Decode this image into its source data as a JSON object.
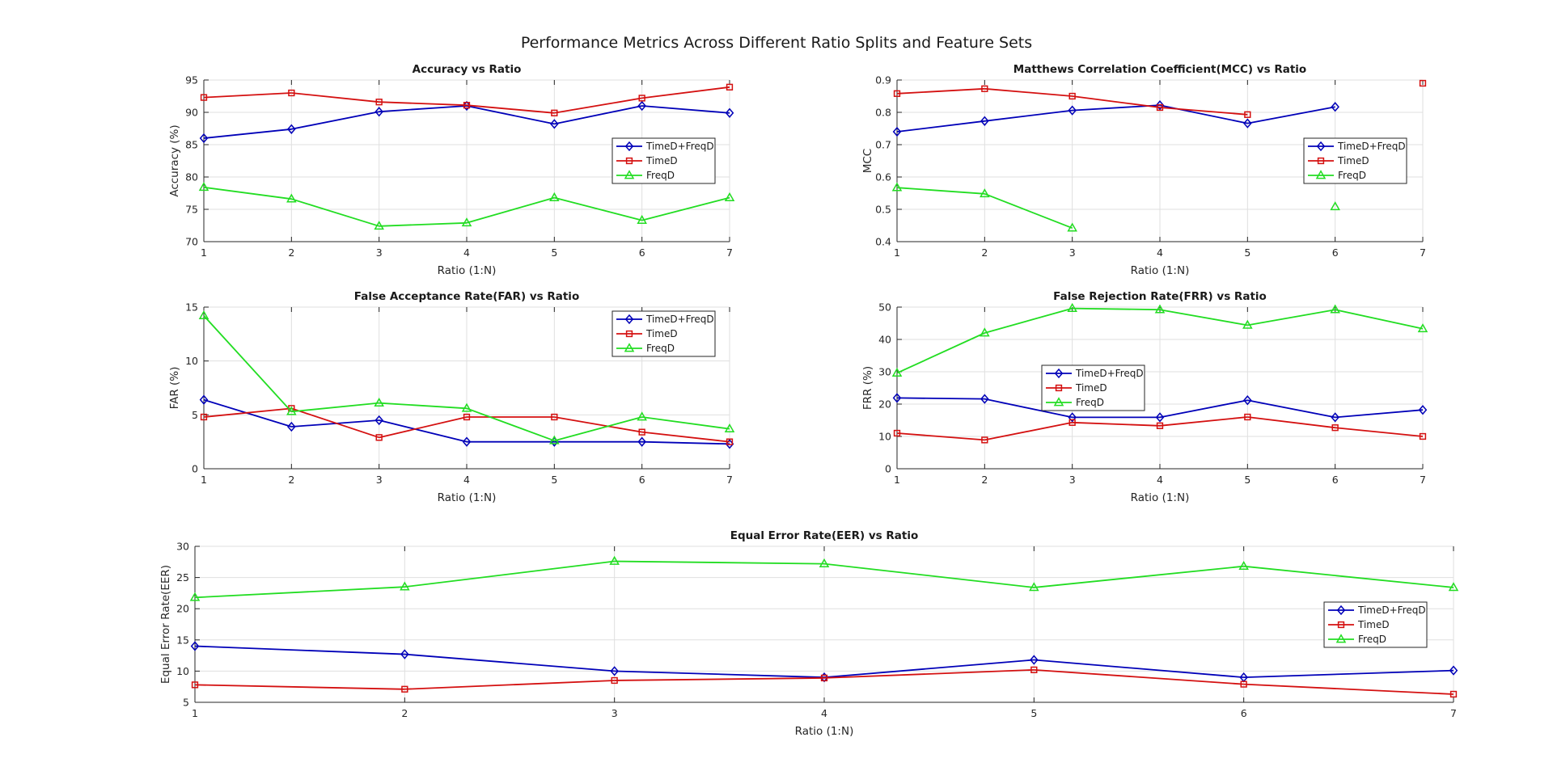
{
  "figure_title": "Performance Metrics Across Different Ratio Splits and Feature Sets",
  "series_styles": {
    "TimeD+FreqD": {
      "color": "#0000b8",
      "marker": "diamond"
    },
    "TimeD": {
      "color": "#d41010",
      "marker": "square"
    },
    "FreqD": {
      "color": "#22dd22",
      "marker": "triangle"
    }
  },
  "chart_data": [
    {
      "type": "line",
      "title": "Accuracy vs Ratio",
      "xlabel": "Ratio (1:N)",
      "ylabel": "Accuracy (%)",
      "x": [
        1,
        2,
        3,
        4,
        5,
        6,
        7
      ],
      "xlim": [
        1,
        7
      ],
      "ylim": [
        70,
        95
      ],
      "yticks": [
        70,
        75,
        80,
        85,
        90,
        95
      ],
      "grid": true,
      "legend": "right",
      "series": [
        {
          "name": "TimeD+FreqD",
          "values": [
            86.0,
            87.4,
            90.1,
            91.0,
            88.2,
            91.0,
            89.9
          ]
        },
        {
          "name": "TimeD",
          "values": [
            92.3,
            93.0,
            91.6,
            91.1,
            89.9,
            92.2,
            93.9
          ]
        },
        {
          "name": "FreqD",
          "values": [
            78.4,
            76.6,
            72.4,
            72.9,
            76.8,
            73.3,
            76.8
          ]
        }
      ]
    },
    {
      "type": "line",
      "title": "Matthews Correlation Coefficient(MCC) vs Ratio",
      "xlabel": "Ratio (1:N)",
      "ylabel": "MCC",
      "x": [
        1,
        2,
        3,
        4,
        5,
        6,
        7
      ],
      "xlim": [
        1,
        7
      ],
      "ylim": [
        0.4,
        0.9
      ],
      "yticks": [
        0.4,
        0.5,
        0.6,
        0.7,
        0.8,
        0.9
      ],
      "grid": true,
      "legend": "right",
      "series": [
        {
          "name": "TimeD+FreqD",
          "values": [
            0.74,
            0.773,
            0.806,
            0.822,
            0.766,
            0.817,
            null
          ]
        },
        {
          "name": "TimeD",
          "values": [
            0.858,
            0.873,
            0.85,
            0.815,
            0.793,
            null,
            0.89
          ]
        },
        {
          "name": "FreqD",
          "values": [
            0.567,
            0.548,
            0.442,
            null,
            null,
            0.508,
            null
          ]
        }
      ]
    },
    {
      "type": "line",
      "title": "False Acceptance Rate(FAR) vs Ratio",
      "xlabel": "Ratio (1:N)",
      "ylabel": "FAR (%)",
      "x": [
        1,
        2,
        3,
        4,
        5,
        6,
        7
      ],
      "xlim": [
        1,
        7
      ],
      "ylim": [
        0,
        15
      ],
      "yticks": [
        0,
        5,
        10,
        15
      ],
      "grid": true,
      "legend": "top-right",
      "series": [
        {
          "name": "TimeD+FreqD",
          "values": [
            6.4,
            3.9,
            4.5,
            2.5,
            2.5,
            2.5,
            2.3
          ]
        },
        {
          "name": "TimeD",
          "values": [
            4.8,
            5.6,
            2.9,
            4.8,
            4.8,
            3.4,
            2.5
          ]
        },
        {
          "name": "FreqD",
          "values": [
            14.2,
            5.3,
            6.1,
            5.6,
            2.6,
            4.8,
            3.7
          ]
        }
      ]
    },
    {
      "type": "line",
      "title": "False Rejection Rate(FRR) vs Ratio",
      "xlabel": "Ratio (1:N)",
      "ylabel": "FRR (%)",
      "x": [
        1,
        2,
        3,
        4,
        5,
        6,
        7
      ],
      "xlim": [
        1,
        7
      ],
      "ylim": [
        0,
        50
      ],
      "yticks": [
        0,
        10,
        20,
        30,
        40,
        50
      ],
      "grid": true,
      "legend": "left",
      "series": [
        {
          "name": "TimeD+FreqD",
          "values": [
            21.9,
            21.6,
            15.9,
            15.9,
            21.2,
            15.9,
            18.2
          ]
        },
        {
          "name": "TimeD",
          "values": [
            11.0,
            8.9,
            14.3,
            13.3,
            16.0,
            12.7,
            10.0
          ]
        },
        {
          "name": "FreqD",
          "values": [
            29.6,
            42.0,
            49.6,
            49.2,
            44.4,
            49.2,
            43.3
          ]
        }
      ]
    },
    {
      "type": "line",
      "title": "Equal Error Rate(EER) vs Ratio",
      "xlabel": "Ratio (1:N)",
      "ylabel": "Equal Error Rate(EER)",
      "x": [
        1,
        2,
        3,
        4,
        5,
        6,
        7
      ],
      "xlim": [
        1,
        7
      ],
      "ylim": [
        5,
        30
      ],
      "yticks": [
        5,
        10,
        15,
        20,
        25,
        30
      ],
      "grid": true,
      "legend": "right",
      "series": [
        {
          "name": "TimeD+FreqD",
          "values": [
            14.0,
            12.7,
            10.0,
            9.0,
            11.8,
            9.0,
            10.1
          ]
        },
        {
          "name": "TimeD",
          "values": [
            7.8,
            7.1,
            8.5,
            8.9,
            10.2,
            7.9,
            6.3
          ]
        },
        {
          "name": "FreqD",
          "values": [
            21.8,
            23.5,
            27.6,
            27.2,
            23.4,
            26.8,
            23.4
          ]
        }
      ]
    }
  ]
}
